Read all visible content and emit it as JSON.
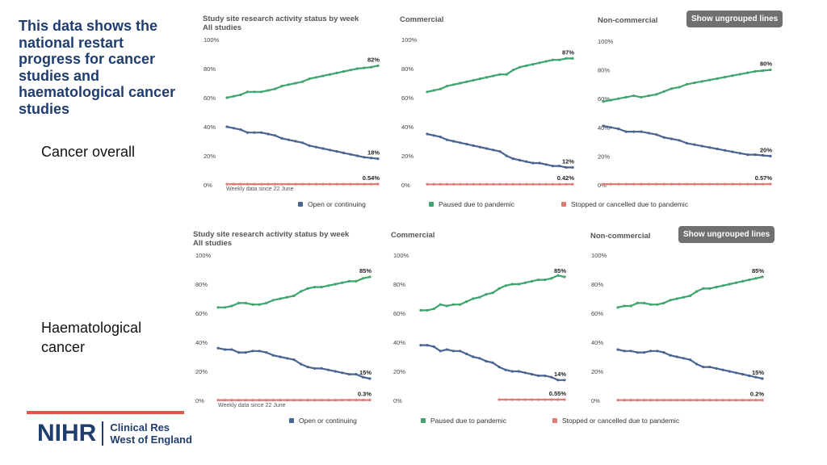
{
  "headline": "This data shows the national restart progress for cancer studies and haematological cancer studies",
  "colors": {
    "open": "#4a6491",
    "paused": "#3fa56c",
    "stopped": "#e07a75",
    "headline": "#1f3d6e",
    "footer_bar": "#d9594a",
    "button": "#707070"
  },
  "sections": [
    {
      "label": "Cancer overall",
      "chart_title_line1": "Study site research activity status by week",
      "chart_title_line2": "All studies",
      "weekly_note": "Weekly data since 22 June",
      "button": "Show ungrouped lines",
      "legend": [
        "Open or continuing",
        "Paused due to pandemic",
        "Stopped or cancelled due to pandemic"
      ]
    },
    {
      "label": "Haematological cancer",
      "chart_title_line1": "Study site research activity status by week",
      "chart_title_line2": "All studies",
      "weekly_note": "Weekly data since 22 June",
      "button": "Show ungrouped lines",
      "legend": [
        "Open or continuing",
        "Paused due to pandemic",
        "Stopped or cancelled due to pandemic"
      ]
    }
  ],
  "logo": {
    "brand": "NIHR",
    "line1": "Clinical Res",
    "line2": "West of England"
  },
  "chart_data": [
    {
      "type": "line",
      "section": "Cancer overall",
      "title": "All studies",
      "ylim": [
        0,
        100
      ],
      "yticks": [
        "100%",
        "80%",
        "60%",
        "40%",
        "20%",
        "0%"
      ],
      "series": [
        {
          "name": "Paused due to pandemic",
          "color": "#3fa56c",
          "values": [
            60,
            61,
            62,
            64,
            64,
            64,
            65,
            66,
            68,
            69,
            70,
            71,
            73,
            74,
            75,
            76,
            77,
            78,
            79,
            80,
            80.5,
            81,
            82
          ],
          "end_label": "82%"
        },
        {
          "name": "Open or continuing",
          "color": "#4a6491",
          "values": [
            40,
            39,
            38,
            36,
            36,
            36,
            35,
            34,
            32,
            31,
            30,
            29,
            27,
            26,
            25,
            24,
            23,
            22,
            21,
            20,
            19,
            18.5,
            18
          ],
          "end_label": "18%"
        },
        {
          "name": "Stopped or cancelled due to pandemic",
          "color": "#e07a75",
          "values": [
            0.5,
            0.5,
            0.5,
            0.5,
            0.5,
            0.5,
            0.5,
            0.5,
            0.5,
            0.5,
            0.5,
            0.5,
            0.5,
            0.5,
            0.5,
            0.5,
            0.5,
            0.5,
            0.5,
            0.5,
            0.5,
            0.5,
            0.54
          ],
          "end_label": "0.54%"
        }
      ]
    },
    {
      "type": "line",
      "section": "Cancer overall",
      "title": "Commercial",
      "ylim": [
        0,
        100
      ],
      "yticks": [
        "100%",
        "80%",
        "60%",
        "40%",
        "20%",
        "0%"
      ],
      "series": [
        {
          "name": "Paused due to pandemic",
          "color": "#3fa56c",
          "values": [
            64,
            65,
            66,
            68,
            69,
            70,
            71,
            72,
            73,
            74,
            75,
            76,
            76,
            79,
            81,
            82,
            83,
            84,
            85,
            86,
            86,
            87,
            87
          ],
          "end_label": "87%"
        },
        {
          "name": "Open or continuing",
          "color": "#4a6491",
          "values": [
            35,
            34,
            33,
            31,
            30,
            29,
            28,
            27,
            26,
            25,
            24,
            23,
            20,
            18,
            17,
            16,
            15,
            15,
            14,
            13,
            13,
            12,
            12
          ],
          "end_label": "12%"
        },
        {
          "name": "Stopped or cancelled due to pandemic",
          "color": "#e07a75",
          "values": [
            0.4,
            0.4,
            0.4,
            0.4,
            0.4,
            0.4,
            0.4,
            0.4,
            0.4,
            0.4,
            0.4,
            0.4,
            0.4,
            0.4,
            0.4,
            0.4,
            0.4,
            0.4,
            0.4,
            0.4,
            0.4,
            0.4,
            0.42
          ],
          "end_label": "0.42%"
        }
      ]
    },
    {
      "type": "line",
      "section": "Cancer overall",
      "title": "Non-commercial",
      "ylim": [
        0,
        100
      ],
      "yticks": [
        "100%",
        "80%",
        "60%",
        "40%",
        "20%",
        "0%"
      ],
      "series": [
        {
          "name": "Paused due to pandemic",
          "color": "#3fa56c",
          "values": [
            58,
            59,
            60,
            61,
            62,
            61,
            62,
            63,
            65,
            67,
            68,
            70,
            71,
            72,
            73,
            74,
            75,
            76,
            77,
            78,
            79,
            79.5,
            80
          ],
          "end_label": "80%"
        },
        {
          "name": "Open or continuing",
          "color": "#4a6491",
          "values": [
            41,
            40,
            39,
            37,
            37,
            37,
            36,
            35,
            33,
            32,
            31,
            29,
            28,
            27,
            26,
            25,
            24,
            23,
            22,
            21,
            21,
            20.5,
            20
          ],
          "end_label": "20%"
        },
        {
          "name": "Stopped or cancelled due to pandemic",
          "color": "#e07a75",
          "values": [
            0.5,
            0.5,
            0.5,
            0.5,
            0.5,
            0.5,
            0.5,
            0.5,
            0.5,
            0.5,
            0.5,
            0.5,
            0.5,
            0.5,
            0.5,
            0.5,
            0.5,
            0.5,
            0.5,
            0.5,
            0.5,
            0.5,
            0.57
          ],
          "end_label": "0.57%"
        }
      ]
    },
    {
      "type": "line",
      "section": "Haematological cancer",
      "title": "All studies",
      "ylim": [
        0,
        100
      ],
      "yticks": [
        "100%",
        "80%",
        "60%",
        "40%",
        "20%",
        "0%"
      ],
      "series": [
        {
          "name": "Paused due to pandemic",
          "color": "#3fa56c",
          "values": [
            64,
            64,
            65,
            67,
            67,
            66,
            66,
            67,
            69,
            70,
            71,
            72,
            75,
            77,
            78,
            78,
            79,
            80,
            81,
            82,
            82,
            84,
            85
          ],
          "end_label": "85%"
        },
        {
          "name": "Open or continuing",
          "color": "#4a6491",
          "values": [
            36,
            35,
            35,
            33,
            33,
            34,
            34,
            33,
            31,
            30,
            29,
            28,
            25,
            23,
            22,
            22,
            21,
            20,
            19,
            18,
            18,
            16,
            15
          ],
          "end_label": "15%"
        },
        {
          "name": "Stopped or cancelled due to pandemic",
          "color": "#e07a75",
          "values": [
            0.2,
            0.2,
            0.2,
            0.2,
            0.2,
            0.2,
            0.2,
            0.2,
            0.2,
            0.2,
            0.2,
            0.2,
            0.2,
            0.2,
            0.2,
            0.2,
            0.2,
            0.2,
            0.3,
            0.3,
            0.3,
            0.3,
            0.3
          ],
          "end_label": "0.3%"
        }
      ]
    },
    {
      "type": "line",
      "section": "Haematological cancer",
      "title": "Commercial",
      "ylim": [
        0,
        100
      ],
      "yticks": [
        "100%",
        "80%",
        "60%",
        "40%",
        "20%",
        "0%"
      ],
      "series": [
        {
          "name": "Paused due to pandemic",
          "color": "#3fa56c",
          "values": [
            62,
            62,
            63,
            66,
            65,
            66,
            66,
            68,
            70,
            71,
            73,
            74,
            77,
            79,
            80,
            80,
            81,
            82,
            83,
            83,
            84,
            86,
            85
          ],
          "end_label": "85%"
        },
        {
          "name": "Open or continuing",
          "color": "#4a6491",
          "values": [
            38,
            38,
            37,
            34,
            35,
            34,
            34,
            32,
            30,
            29,
            27,
            26,
            23,
            21,
            20,
            20,
            19,
            18,
            17,
            17,
            16,
            14,
            14
          ],
          "end_label": "14%"
        },
        {
          "name": "Stopped or cancelled due to pandemic",
          "color": "#e07a75",
          "values": [
            null,
            null,
            null,
            null,
            null,
            null,
            null,
            null,
            null,
            null,
            null,
            null,
            0.55,
            0.55,
            0.55,
            0.55,
            0.55,
            0.55,
            0.55,
            0.55,
            0.55,
            0.55,
            0.55
          ],
          "end_label": "0.55%"
        }
      ]
    },
    {
      "type": "line",
      "section": "Haematological cancer",
      "title": "Non-commercial",
      "ylim": [
        0,
        100
      ],
      "yticks": [
        "100%",
        "80%",
        "60%",
        "40%",
        "20%",
        "0%"
      ],
      "series": [
        {
          "name": "Paused due to pandemic",
          "color": "#3fa56c",
          "values": [
            64,
            65,
            65,
            67,
            67,
            66,
            66,
            67,
            69,
            70,
            71,
            72,
            75,
            77,
            77,
            78,
            79,
            80,
            81,
            82,
            83,
            84,
            85
          ],
          "end_label": "85%"
        },
        {
          "name": "Open or continuing",
          "color": "#4a6491",
          "values": [
            35,
            34,
            34,
            33,
            33,
            34,
            34,
            33,
            31,
            30,
            29,
            28,
            25,
            23,
            23,
            22,
            21,
            20,
            19,
            18,
            17,
            16,
            15
          ],
          "end_label": "15%"
        },
        {
          "name": "Stopped or cancelled due to pandemic",
          "color": "#e07a75",
          "values": [
            0.2,
            0.2,
            0.2,
            0.2,
            0.2,
            0.2,
            0.2,
            0.2,
            0.2,
            0.2,
            0.2,
            0.2,
            0.2,
            0.2,
            0.2,
            0.2,
            0.2,
            0.2,
            0.2,
            0.2,
            0.2,
            0.2,
            0.2
          ],
          "end_label": "0.2%"
        }
      ]
    }
  ]
}
